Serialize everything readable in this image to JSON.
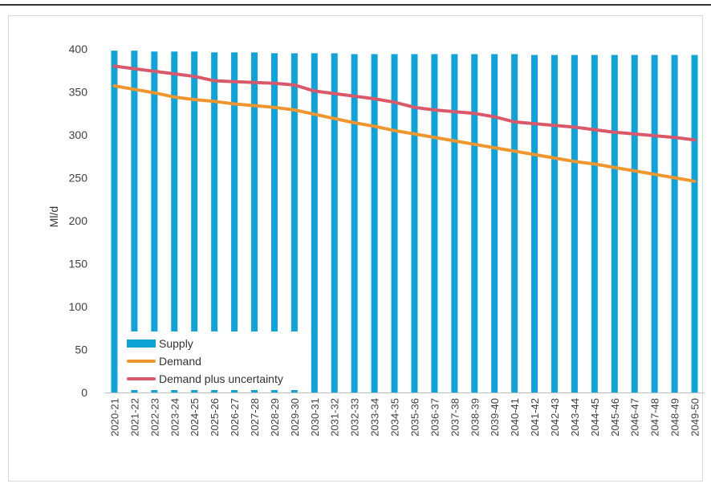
{
  "chart_data": {
    "type": "bar",
    "title": "",
    "xlabel": "",
    "ylabel": "Ml/d",
    "ylim": [
      0,
      400
    ],
    "yticks": [
      0,
      50,
      100,
      150,
      200,
      250,
      300,
      350,
      400
    ],
    "grid": false,
    "legend_position": "bottom-left",
    "categories": [
      "2020-21",
      "2021-22",
      "2022-23",
      "2023-24",
      "2024-25",
      "2025-26",
      "2026-27",
      "2027-28",
      "2028-29",
      "2029-30",
      "2030-31",
      "2031-32",
      "2032-33",
      "2033-34",
      "2034-35",
      "2035-36",
      "2036-37",
      "2037-38",
      "2038-39",
      "2039-40",
      "2040-41",
      "2041-42",
      "2042-43",
      "2043-44",
      "2044-45",
      "2045-46",
      "2046-47",
      "2047-48",
      "2048-49",
      "2049-50"
    ],
    "series": [
      {
        "name": "Supply",
        "kind": "bar",
        "color": "#0FA3D9",
        "values": [
          398,
          398,
          397,
          397,
          397,
          396,
          396,
          396,
          395,
          395,
          395,
          395,
          394,
          394,
          394,
          394,
          394,
          394,
          394,
          394,
          394,
          393,
          393,
          393,
          393,
          393,
          393,
          393,
          393,
          393
        ]
      },
      {
        "name": "Demand",
        "kind": "line",
        "color": "#F0962E",
        "values": [
          357,
          353,
          349,
          344,
          341,
          339,
          336,
          334,
          332,
          329,
          324,
          319,
          314,
          310,
          305,
          301,
          297,
          293,
          289,
          285,
          281,
          277,
          273,
          269,
          266,
          262,
          258,
          254,
          250,
          246
        ]
      },
      {
        "name": "Demand plus uncertainty",
        "kind": "line",
        "color": "#D9596B",
        "values": [
          380,
          377,
          374,
          371,
          368,
          363,
          362,
          361,
          360,
          358,
          351,
          348,
          345,
          342,
          338,
          332,
          329,
          327,
          325,
          321,
          315,
          313,
          311,
          309,
          306,
          303,
          301,
          299,
          297,
          294
        ]
      }
    ]
  }
}
